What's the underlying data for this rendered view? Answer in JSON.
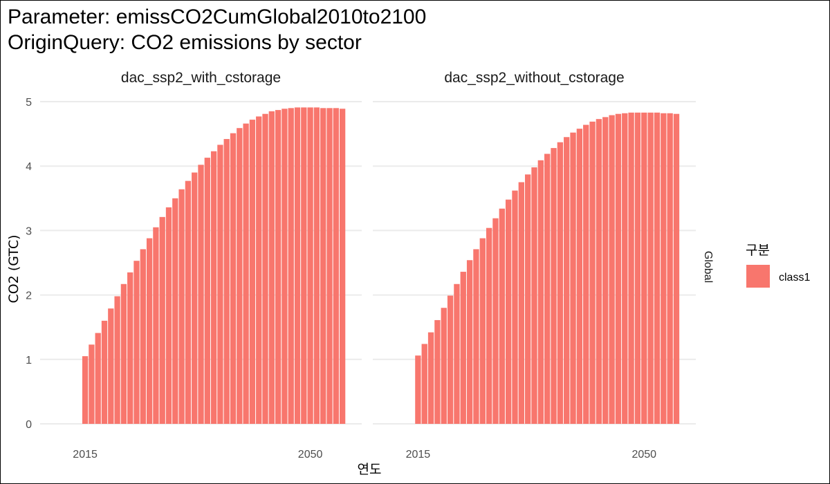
{
  "chart_data": {
    "type": "bar",
    "title_lines": [
      "Parameter: emissCO2CumGlobal2010to2100",
      "OriginQuery: CO2 emissions by sector"
    ],
    "xlabel": "연도",
    "ylabel": "CO2 (GTC)",
    "ylim": [
      0,
      5
    ],
    "yticks": [
      0,
      1,
      2,
      3,
      4,
      5
    ],
    "xticks": [
      2015,
      2050
    ],
    "xlim": [
      2008,
      2058
    ],
    "grid": true,
    "row_strip": "Global",
    "legend": {
      "title": "구분",
      "entries": [
        "class1"
      ],
      "placement": "right"
    },
    "bar_color": "#F8766D",
    "panels": [
      {
        "name": "dac_ssp2_with_cstorage",
        "series": [
          {
            "name": "class1",
            "x": [
              2015,
              2016,
              2017,
              2018,
              2019,
              2020,
              2021,
              2022,
              2023,
              2024,
              2025,
              2026,
              2027,
              2028,
              2029,
              2030,
              2031,
              2032,
              2033,
              2034,
              2035,
              2036,
              2037,
              2038,
              2039,
              2040,
              2041,
              2042,
              2043,
              2044,
              2045,
              2046,
              2047,
              2048,
              2049,
              2050,
              2051,
              2052,
              2053,
              2054,
              2055
            ],
            "values": [
              1.05,
              1.23,
              1.41,
              1.6,
              1.79,
              1.98,
              2.17,
              2.35,
              2.53,
              2.71,
              2.88,
              3.05,
              3.21,
              3.36,
              3.5,
              3.64,
              3.77,
              3.9,
              4.02,
              4.13,
              4.23,
              4.33,
              4.42,
              4.51,
              4.59,
              4.66,
              4.72,
              4.77,
              4.81,
              4.85,
              4.87,
              4.89,
              4.9,
              4.91,
              4.91,
              4.91,
              4.91,
              4.9,
              4.9,
              4.9,
              4.89
            ]
          }
        ]
      },
      {
        "name": "dac_ssp2_without_cstorage",
        "series": [
          {
            "name": "class1",
            "x": [
              2015,
              2016,
              2017,
              2018,
              2019,
              2020,
              2021,
              2022,
              2023,
              2024,
              2025,
              2026,
              2027,
              2028,
              2029,
              2030,
              2031,
              2032,
              2033,
              2034,
              2035,
              2036,
              2037,
              2038,
              2039,
              2040,
              2041,
              2042,
              2043,
              2044,
              2045,
              2046,
              2047,
              2048,
              2049,
              2050,
              2051,
              2052,
              2053,
              2054,
              2055
            ],
            "values": [
              1.06,
              1.24,
              1.42,
              1.61,
              1.8,
              1.99,
              2.17,
              2.36,
              2.54,
              2.71,
              2.88,
              3.04,
              3.19,
              3.34,
              3.48,
              3.62,
              3.75,
              3.87,
              3.98,
              4.09,
              4.19,
              4.28,
              4.37,
              4.45,
              4.52,
              4.58,
              4.64,
              4.69,
              4.73,
              4.76,
              4.79,
              4.81,
              4.82,
              4.83,
              4.83,
              4.83,
              4.83,
              4.83,
              4.82,
              4.82,
              4.81
            ]
          }
        ]
      }
    ]
  }
}
